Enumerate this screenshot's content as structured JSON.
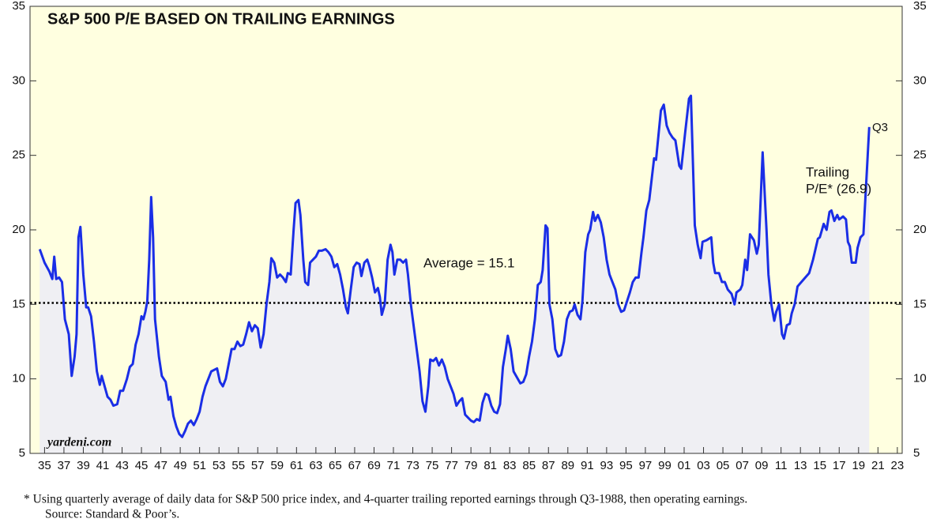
{
  "chart_data": {
    "type": "line",
    "title": "S&P 500 P/E BASED ON TRAILING EARNINGS",
    "x": [
      1935.0,
      1935.5,
      1936.0,
      1936.3,
      1936.5,
      1936.7,
      1937.0,
      1937.3,
      1937.6,
      1938.0,
      1938.3,
      1938.6,
      1938.8,
      1939.0,
      1939.2,
      1939.5,
      1939.8,
      1940.0,
      1940.3,
      1940.6,
      1940.9,
      1941.2,
      1941.4,
      1941.7,
      1942.0,
      1942.3,
      1942.6,
      1943.0,
      1943.3,
      1943.6,
      1944.0,
      1944.3,
      1944.6,
      1944.9,
      1945.2,
      1945.5,
      1945.7,
      1945.9,
      1946.1,
      1946.3,
      1946.5,
      1946.7,
      1946.9,
      1947.3,
      1947.6,
      1948.0,
      1948.3,
      1948.5,
      1948.8,
      1949.1,
      1949.4,
      1949.7,
      1950.0,
      1950.3,
      1950.6,
      1950.9,
      1951.2,
      1951.5,
      1951.8,
      1952.1,
      1952.4,
      1952.7,
      1953.0,
      1953.3,
      1953.6,
      1953.9,
      1954.2,
      1954.5,
      1954.8,
      1955.1,
      1955.4,
      1955.7,
      1956.0,
      1956.3,
      1956.6,
      1956.9,
      1957.2,
      1957.5,
      1957.8,
      1958.1,
      1958.4,
      1958.7,
      1958.9,
      1959.2,
      1959.5,
      1959.8,
      1960.1,
      1960.4,
      1960.6,
      1960.9,
      1961.2,
      1961.4,
      1961.7,
      1961.9,
      1962.2,
      1962.4,
      1962.7,
      1962.9,
      1963.2,
      1963.5,
      1963.8,
      1964.1,
      1964.5,
      1964.8,
      1965.1,
      1965.4,
      1965.7,
      1966.0,
      1966.3,
      1966.6,
      1966.8,
      1967.1,
      1967.4,
      1967.7,
      1968.0,
      1968.2,
      1968.5,
      1968.8,
      1969.0,
      1969.3,
      1969.6,
      1969.9,
      1970.1,
      1970.3,
      1970.6,
      1970.9,
      1971.2,
      1971.4,
      1971.6,
      1971.9,
      1972.2,
      1972.5,
      1972.8,
      1973.0,
      1973.3,
      1973.6,
      1973.9,
      1974.2,
      1974.5,
      1974.8,
      1975.1,
      1975.3,
      1975.6,
      1975.9,
      1976.2,
      1976.5,
      1976.8,
      1977.1,
      1977.4,
      1977.7,
      1978.0,
      1978.3,
      1978.6,
      1978.9,
      1979.2,
      1979.5,
      1979.8,
      1980.1,
      1980.4,
      1980.7,
      1981.0,
      1981.3,
      1981.6,
      1981.9,
      1982.2,
      1982.5,
      1982.8,
      1983.1,
      1983.3,
      1983.6,
      1983.9,
      1984.6,
      1984.9,
      1985.2,
      1985.5,
      1985.8,
      1986.1,
      1986.4,
      1986.7,
      1986.9,
      1987.2,
      1987.4,
      1987.6,
      1987.9,
      1988.2,
      1988.5,
      1988.8,
      1989.1,
      1989.4,
      1989.7,
      1990.0,
      1990.2,
      1990.5,
      1990.8,
      1991.0,
      1991.3,
      1991.6,
      1991.8,
      1992.1,
      1992.3,
      1992.6,
      1992.9,
      1993.2,
      1993.5,
      1993.8,
      1994.1,
      1994.4,
      1994.7,
      1995.0,
      1995.3,
      1995.6,
      1995.9,
      1996.2,
      1996.5,
      1996.8,
      1997.1,
      1997.3,
      1997.6,
      1997.9,
      1998.4,
      1998.6,
      1999.1,
      1999.4,
      1999.7,
      2000.0,
      2000.3,
      2000.6,
      2001.0,
      2001.2,
      2001.6,
      2002.0,
      2002.2,
      2002.6,
      2002.9,
      2003.2,
      2003.4,
      2003.8,
      2004.3,
      2004.5,
      2004.7,
      2005.1,
      2005.4,
      2005.7,
      2006.0,
      2006.4,
      2006.7,
      2006.9,
      2007.3,
      2007.5,
      2007.8,
      2008.0,
      2008.3,
      2008.7,
      2009.0,
      2009.2,
      2009.6,
      2010.0,
      2010.2,
      2010.5,
      2010.8,
      2011.0,
      2011.3,
      2011.6,
      2011.8,
      2012.1,
      2012.4,
      2012.6,
      2012.9,
      2013.2,
      2013.6,
      2014.0,
      2014.4,
      2014.8,
      2015.3,
      2015.5,
      2015.9,
      2016.2,
      2016.5,
      2016.7,
      2017.0,
      2017.3,
      2017.5,
      2017.9,
      2018.2,
      2018.4,
      2018.6,
      2018.8,
      2019.2,
      2019.4,
      2019.7,
      2020.0,
      2020.6
    ],
    "values": [
      18.7,
      17.8,
      17.2,
      16.7,
      18.2,
      16.7,
      16.8,
      16.5,
      14.0,
      13.0,
      10.2,
      11.5,
      13.0,
      19.5,
      20.2,
      17.0,
      14.8,
      14.8,
      14.2,
      12.5,
      10.5,
      9.6,
      10.2,
      9.5,
      8.8,
      8.6,
      8.2,
      8.3,
      9.2,
      9.2,
      10.0,
      10.8,
      11.0,
      12.3,
      13.0,
      14.2,
      14.0,
      14.5,
      15.2,
      18.0,
      22.2,
      19.5,
      14.0,
      11.5,
      10.2,
      9.8,
      8.6,
      8.8,
      7.5,
      6.8,
      6.3,
      6.1,
      6.5,
      7.0,
      7.2,
      6.9,
      7.3,
      7.8,
      8.8,
      9.5,
      10.0,
      10.5,
      10.6,
      10.7,
      9.8,
      9.5,
      10.0,
      11.0,
      12.0,
      12.0,
      12.5,
      12.2,
      12.3,
      13.0,
      13.8,
      13.2,
      13.6,
      13.4,
      12.1,
      13.0,
      15.0,
      16.5,
      18.1,
      17.8,
      16.8,
      17.0,
      16.8,
      16.5,
      17.1,
      17.0,
      20.0,
      21.8,
      22.0,
      21.0,
      18.0,
      16.5,
      16.3,
      17.8,
      18.0,
      18.2,
      18.6,
      18.6,
      18.7,
      18.5,
      18.2,
      17.5,
      17.7,
      17.0,
      16.0,
      14.8,
      14.4,
      16.0,
      17.5,
      17.8,
      17.7,
      16.9,
      17.8,
      18.0,
      17.6,
      16.8,
      15.8,
      16.1,
      15.5,
      14.3,
      15.0,
      18.0,
      19.0,
      18.5,
      17.0,
      18.0,
      18.0,
      17.8,
      18.0,
      17.0,
      15.0,
      13.5,
      12.0,
      10.5,
      8.5,
      7.8,
      9.5,
      11.3,
      11.2,
      11.4,
      10.9,
      11.3,
      10.8,
      10.0,
      9.5,
      9.0,
      8.2,
      8.5,
      8.7,
      7.6,
      7.4,
      7.2,
      7.1,
      7.3,
      7.2,
      8.4,
      9.0,
      8.9,
      8.2,
      7.8,
      7.7,
      8.3,
      10.8,
      12.0,
      12.9,
      12.0,
      10.5,
      9.7,
      9.8,
      10.3,
      11.5,
      12.5,
      14.0,
      16.3,
      16.5,
      17.3,
      20.3,
      20.1,
      15.0,
      14.0,
      12.0,
      11.5,
      11.6,
      12.5,
      14.0,
      14.5,
      14.6,
      15.0,
      14.3,
      14.0,
      15.2,
      18.5,
      19.7,
      20.0,
      21.2,
      20.6,
      21.0,
      20.5,
      19.5,
      18.0,
      17.0,
      16.5,
      16.0,
      15.0,
      14.5,
      14.6,
      15.2,
      15.8,
      16.5,
      16.8,
      16.8,
      18.5,
      19.5,
      21.3,
      22.0,
      24.8,
      24.7,
      28.0,
      28.4,
      27.0,
      26.5,
      26.2,
      26.0,
      24.3,
      24.1,
      26.5,
      28.8,
      29.0,
      20.3,
      19.0,
      18.1,
      19.2,
      19.3,
      19.5,
      17.8,
      17.1,
      17.1,
      16.5,
      16.5,
      16.0,
      15.7,
      15.0,
      15.8,
      16.0,
      16.3,
      18.0,
      17.3,
      19.7,
      19.3,
      18.4,
      19.0,
      25.2,
      20.0,
      17.0,
      15.0,
      13.9,
      14.5,
      15.0,
      13.0,
      12.7,
      13.6,
      13.7,
      14.4,
      15.0,
      16.2,
      16.5,
      16.8,
      17.1,
      18.0,
      19.4,
      19.5,
      20.4,
      20.0,
      21.2,
      21.3,
      20.6,
      21.0,
      20.7,
      20.9,
      20.7,
      19.2,
      18.9,
      17.8,
      17.8,
      18.8,
      19.5,
      19.7,
      26.9
    ],
    "color": "#1a2ee6",
    "fill_color": "#efeff3",
    "background_color": "#ffffe0",
    "average": 15.1,
    "average_label": "Average = 15.1",
    "end_label": "Q3",
    "trailing_label": [
      "Trailing",
      "P/E* (26.9)"
    ],
    "source_mark": "yardeni.com",
    "xlim": [
      1934,
      2024
    ],
    "xticks": [
      {
        "value": 1935.5,
        "label": "35"
      },
      {
        "value": 1937.5,
        "label": "37"
      },
      {
        "value": 1939.5,
        "label": "39"
      },
      {
        "value": 1941.5,
        "label": "41"
      },
      {
        "value": 1943.5,
        "label": "43"
      },
      {
        "value": 1945.5,
        "label": "45"
      },
      {
        "value": 1947.5,
        "label": "47"
      },
      {
        "value": 1949.5,
        "label": "49"
      },
      {
        "value": 1951.5,
        "label": "51"
      },
      {
        "value": 1953.5,
        "label": "53"
      },
      {
        "value": 1955.5,
        "label": "55"
      },
      {
        "value": 1957.5,
        "label": "57"
      },
      {
        "value": 1959.5,
        "label": "59"
      },
      {
        "value": 1961.5,
        "label": "61"
      },
      {
        "value": 1963.5,
        "label": "63"
      },
      {
        "value": 1965.5,
        "label": "65"
      },
      {
        "value": 1967.5,
        "label": "67"
      },
      {
        "value": 1969.5,
        "label": "69"
      },
      {
        "value": 1971.5,
        "label": "71"
      },
      {
        "value": 1973.5,
        "label": "73"
      },
      {
        "value": 1975.5,
        "label": "75"
      },
      {
        "value": 1977.5,
        "label": "77"
      },
      {
        "value": 1979.5,
        "label": "79"
      },
      {
        "value": 1981.5,
        "label": "81"
      },
      {
        "value": 1983.5,
        "label": "83"
      },
      {
        "value": 1985.5,
        "label": "85"
      },
      {
        "value": 1987.5,
        "label": "87"
      },
      {
        "value": 1989.5,
        "label": "89"
      },
      {
        "value": 1991.5,
        "label": "91"
      },
      {
        "value": 1993.5,
        "label": "93"
      },
      {
        "value": 1995.5,
        "label": "95"
      },
      {
        "value": 1997.5,
        "label": "97"
      },
      {
        "value": 1999.5,
        "label": "99"
      },
      {
        "value": 2001.5,
        "label": "01"
      },
      {
        "value": 2003.5,
        "label": "03"
      },
      {
        "value": 2005.5,
        "label": "05"
      },
      {
        "value": 2007.5,
        "label": "07"
      },
      {
        "value": 2009.5,
        "label": "09"
      },
      {
        "value": 2011.5,
        "label": "11"
      },
      {
        "value": 2013.5,
        "label": "13"
      },
      {
        "value": 2015.5,
        "label": "15"
      },
      {
        "value": 2017.5,
        "label": "17"
      },
      {
        "value": 2019.5,
        "label": "19"
      },
      {
        "value": 2021.5,
        "label": "21"
      },
      {
        "value": 2023.5,
        "label": "23"
      }
    ],
    "ylim": [
      5,
      35
    ],
    "yticks": [
      5,
      10,
      15,
      20,
      25,
      30,
      35
    ],
    "y2lim": [
      5,
      35
    ],
    "y2ticks": [
      5,
      10,
      15,
      20,
      25,
      30,
      35
    ],
    "footnotes": [
      "*  Using quarterly average of daily data for S&P 500 price index, and 4-quarter trailing reported earnings through Q3-1988, then operating earnings.",
      "Source: Standard & Poor’s."
    ]
  }
}
